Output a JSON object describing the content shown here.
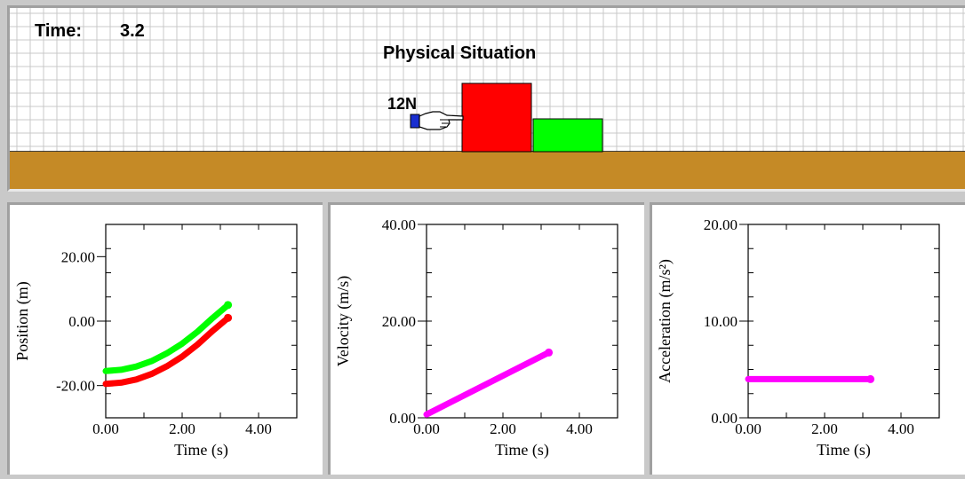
{
  "simulation": {
    "time_label": "Time:",
    "time_value": "3.2",
    "title": "Physical Situation",
    "force_label": "12N",
    "colors": {
      "ground": "#c58a26",
      "block_big": "#ff0000",
      "block_small": "#00ff00",
      "pusher": "#1a2fd0",
      "grid": "#c8c8c8"
    }
  },
  "graphs": [
    {
      "id": "position",
      "chart_data": {
        "type": "line",
        "ylabel": "Position (m)",
        "xlabel": "Time (s)",
        "xlim": [
          0,
          5
        ],
        "ylim": [
          -30,
          30
        ],
        "xticks": [
          "0.00",
          "2.00",
          "4.00"
        ],
        "yticks": [
          "20.00",
          "0.00",
          "-20.00"
        ],
        "series": [
          {
            "color": "#00ff00",
            "x": [
              0,
              0.4,
              0.8,
              1.2,
              1.6,
              2.0,
              2.4,
              2.8,
              3.2
            ],
            "y": [
              -15.5,
              -15.1,
              -14.1,
              -12.4,
              -10.0,
              -7.0,
              -3.3,
              1.0,
              5.0
            ]
          },
          {
            "color": "#ff0000",
            "x": [
              0,
              0.4,
              0.8,
              1.2,
              1.6,
              2.0,
              2.4,
              2.8,
              3.2
            ],
            "y": [
              -19.5,
              -19.1,
              -18.1,
              -16.4,
              -14.0,
              -11.0,
              -7.3,
              -3.0,
              1.0
            ]
          }
        ]
      }
    },
    {
      "id": "velocity",
      "chart_data": {
        "type": "line",
        "ylabel": "Velocity (m/s)",
        "xlabel": "Time (s)",
        "xlim": [
          0,
          5
        ],
        "ylim": [
          0,
          40
        ],
        "xticks": [
          "0.00",
          "2.00",
          "4.00"
        ],
        "yticks": [
          "40.00",
          "20.00",
          "0.00"
        ],
        "series": [
          {
            "color": "#ff00ff",
            "x": [
              0,
              3.2
            ],
            "y": [
              0.7,
              13.5
            ]
          }
        ]
      }
    },
    {
      "id": "acceleration",
      "chart_data": {
        "type": "line",
        "ylabel": "Acceleration (m/s²)",
        "xlabel": "Time (s)",
        "xlim": [
          0,
          5
        ],
        "ylim": [
          0,
          20
        ],
        "xticks": [
          "0.00",
          "2.00",
          "4.00"
        ],
        "yticks": [
          "20.00",
          "10.00",
          "0.00"
        ],
        "series": [
          {
            "color": "#ff00ff",
            "x": [
              0,
              3.2
            ],
            "y": [
              4.0,
              4.0
            ]
          }
        ]
      }
    }
  ]
}
